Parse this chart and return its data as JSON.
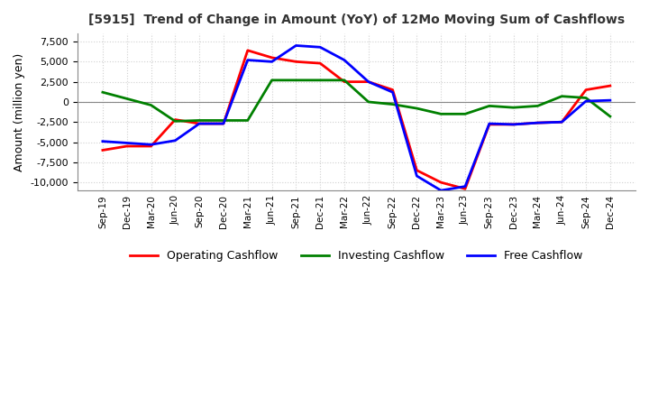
{
  "title": "[5915]  Trend of Change in Amount (YoY) of 12Mo Moving Sum of Cashflows",
  "ylabel": "Amount (million yen)",
  "ylim": [
    -11000,
    8500
  ],
  "yticks": [
    -10000,
    -7500,
    -5000,
    -2500,
    0,
    2500,
    5000,
    7500
  ],
  "background_color": "#ffffff",
  "grid_color": "#d0d0d0",
  "dates": [
    "Sep-19",
    "Dec-19",
    "Mar-20",
    "Jun-20",
    "Sep-20",
    "Dec-20",
    "Mar-21",
    "Jun-21",
    "Sep-21",
    "Dec-21",
    "Mar-22",
    "Jun-22",
    "Sep-22",
    "Dec-22",
    "Mar-23",
    "Jun-23",
    "Sep-23",
    "Dec-23",
    "Mar-24",
    "Jun-24",
    "Sep-24",
    "Dec-24"
  ],
  "operating": [
    -6000,
    -5500,
    -5500,
    -2200,
    -2700,
    -2700,
    6400,
    5500,
    5000,
    4800,
    2500,
    2500,
    1500,
    -8500,
    -10000,
    -10800,
    -2800,
    -2800,
    -2600,
    -2500,
    1500,
    2000
  ],
  "investing": [
    1200,
    400,
    -400,
    -2400,
    -2300,
    -2300,
    -2300,
    2700,
    2700,
    2700,
    2700,
    0,
    -300,
    -800,
    -1500,
    -1500,
    -500,
    -700,
    -500,
    700,
    500,
    -1800
  ],
  "free": [
    -4900,
    -5100,
    -5300,
    -4800,
    -2700,
    -2700,
    5200,
    5000,
    7000,
    6800,
    5200,
    2500,
    1200,
    -9200,
    -11000,
    -10500,
    -2700,
    -2800,
    -2600,
    -2500,
    100,
    200
  ],
  "op_color": "#ff0000",
  "inv_color": "#008000",
  "free_color": "#0000ff",
  "line_width": 2.0
}
